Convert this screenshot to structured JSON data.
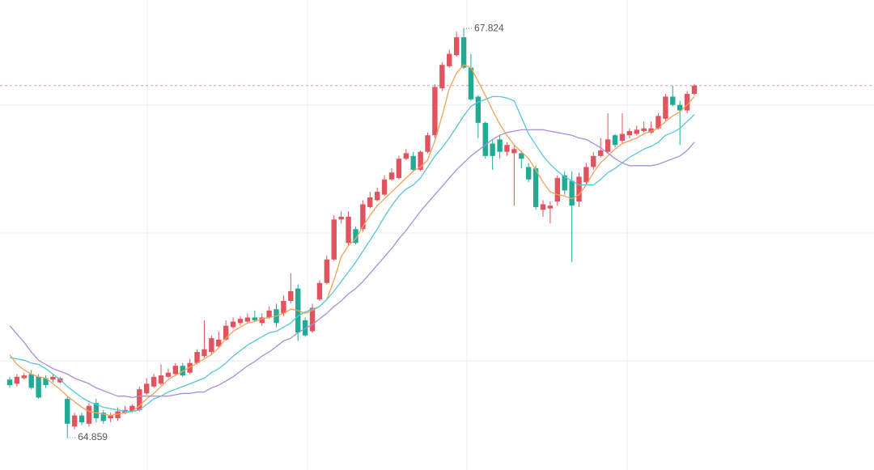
{
  "chart_data": {
    "type": "candlestick",
    "ylim": [
      64.625,
      68.03
    ],
    "up_color": "#e0535f",
    "down_color": "#22ab94",
    "open": [
      65.28,
      65.25,
      65.29,
      65.32,
      65.3,
      65.29,
      65.28,
      65.26,
      65.14,
      64.94,
      65.02,
      64.96,
      65.11,
      65.04,
      65.0,
      65.0,
      65.04,
      65.05,
      65.06,
      65.18,
      65.23,
      65.25,
      65.3,
      65.32,
      65.38,
      65.33,
      65.4,
      65.45,
      65.48,
      65.52,
      65.57,
      65.66,
      65.69,
      65.7,
      65.73,
      65.69,
      65.73,
      65.79,
      65.76,
      65.85,
      65.94,
      65.71,
      65.63,
      65.86,
      65.98,
      66.15,
      66.44,
      66.27,
      66.37,
      66.37,
      66.53,
      66.58,
      66.62,
      66.73,
      66.74,
      66.88,
      66.9,
      66.8,
      66.93,
      67.05,
      67.39,
      67.55,
      67.63,
      67.76,
      67.54,
      67.33,
      67.14,
      66.99,
      67.02,
      66.93,
      66.92,
      66.92,
      66.82,
      66.81,
      66.51,
      66.52,
      66.57,
      66.76,
      66.72,
      66.57,
      66.71,
      66.82,
      66.9,
      66.93,
      67.05,
      67.01,
      67.05,
      67.06,
      67.08,
      67.07,
      67.1,
      67.17,
      67.33,
      67.27,
      67.23,
      67.35
    ],
    "close": [
      65.24,
      65.3,
      65.31,
      65.22,
      65.15,
      65.24,
      65.3,
      65.29,
      64.96,
      65.02,
      64.97,
      65.09,
      65.0,
      64.98,
      65.02,
      65.05,
      65.06,
      65.09,
      65.21,
      65.25,
      65.3,
      65.31,
      65.33,
      65.38,
      65.31,
      65.4,
      65.48,
      65.5,
      65.58,
      65.57,
      65.67,
      65.7,
      65.72,
      65.73,
      65.71,
      65.73,
      65.78,
      65.69,
      65.85,
      65.92,
      65.62,
      65.6,
      65.8,
      65.98,
      66.15,
      66.44,
      66.46,
      66.46,
      66.27,
      66.55,
      66.6,
      66.64,
      66.73,
      66.78,
      66.88,
      66.92,
      66.8,
      66.93,
      67.05,
      67.4,
      67.56,
      67.64,
      67.76,
      67.54,
      67.31,
      67.14,
      66.9,
      66.9,
      66.93,
      66.98,
      66.95,
      66.88,
      66.73,
      66.53,
      66.55,
      66.54,
      66.74,
      66.65,
      66.54,
      66.75,
      66.82,
      66.9,
      66.94,
      67.02,
      66.98,
      67.06,
      67.08,
      67.09,
      67.1,
      67.1,
      67.19,
      67.33,
      67.27,
      67.23,
      67.35,
      67.41
    ],
    "high": [
      65.3,
      65.32,
      65.33,
      65.35,
      65.32,
      65.31,
      65.32,
      65.3,
      65.16,
      65.04,
      65.04,
      65.11,
      65.14,
      65.06,
      65.04,
      65.08,
      65.09,
      65.1,
      65.23,
      65.29,
      65.32,
      65.39,
      65.36,
      65.4,
      65.4,
      65.43,
      65.5,
      65.71,
      65.6,
      65.63,
      65.71,
      65.73,
      65.74,
      65.76,
      65.78,
      65.76,
      65.81,
      65.83,
      65.89,
      66.05,
      65.97,
      65.73,
      65.83,
      66.0,
      66.18,
      66.47,
      66.5,
      66.5,
      66.39,
      66.58,
      66.64,
      66.67,
      66.76,
      66.81,
      66.9,
      66.95,
      66.93,
      66.94,
      67.07,
      67.42,
      67.58,
      67.67,
      67.8,
      67.824,
      67.64,
      67.34,
      67.15,
      67.02,
      67.05,
      67.0,
      66.98,
      66.94,
      66.85,
      66.83,
      66.58,
      66.57,
      66.76,
      66.79,
      66.79,
      66.78,
      66.85,
      66.93,
      67.03,
      67.21,
      67.06,
      67.21,
      67.1,
      67.12,
      67.15,
      67.15,
      67.21,
      67.35,
      67.41,
      67.3,
      67.37,
      67.42
    ],
    "low": [
      65.22,
      65.23,
      65.28,
      65.21,
      65.14,
      65.22,
      65.26,
      65.25,
      64.859,
      64.92,
      64.95,
      64.94,
      64.97,
      64.96,
      64.97,
      64.98,
      65.03,
      65.04,
      65.05,
      65.17,
      65.22,
      65.24,
      65.29,
      65.31,
      65.3,
      65.32,
      65.39,
      65.44,
      65.46,
      65.51,
      65.56,
      65.65,
      65.67,
      65.69,
      65.7,
      65.67,
      65.72,
      65.66,
      65.74,
      65.83,
      65.56,
      65.59,
      65.62,
      65.85,
      65.97,
      66.14,
      66.41,
      66.25,
      66.26,
      66.35,
      66.52,
      66.57,
      66.61,
      66.72,
      66.73,
      66.87,
      66.79,
      66.79,
      66.92,
      67.03,
      67.37,
      67.54,
      67.62,
      67.53,
      67.3,
      67.03,
      66.88,
      66.8,
      66.88,
      66.9,
      66.54,
      66.81,
      66.71,
      66.51,
      66.46,
      66.41,
      66.54,
      66.62,
      66.13,
      66.53,
      66.69,
      66.8,
      66.89,
      66.92,
      66.96,
      66.99,
      67.03,
      67.05,
      67.07,
      67.06,
      67.09,
      67.15,
      67.26,
      66.98,
      67.21,
      67.34
    ],
    "lines": [
      {
        "color": "#f3a15a",
        "values": [
          65.46,
          65.39,
          65.35,
          65.32,
          65.3,
          65.29,
          65.25,
          65.21,
          65.16,
          65.12,
          65.08,
          65.05,
          65.04,
          65.03,
          65.02,
          65.03,
          65.04,
          65.05,
          65.09,
          65.14,
          65.18,
          65.23,
          65.28,
          65.31,
          65.34,
          65.37,
          65.4,
          65.43,
          65.46,
          65.51,
          65.58,
          65.63,
          65.66,
          65.69,
          65.7,
          65.72,
          65.73,
          65.74,
          65.76,
          65.79,
          65.78,
          65.76,
          65.78,
          65.81,
          65.86,
          66.0,
          66.17,
          66.25,
          66.3,
          66.39,
          66.47,
          66.54,
          66.59,
          66.64,
          66.69,
          66.74,
          66.79,
          66.82,
          66.87,
          67.01,
          67.19,
          67.39,
          67.5,
          67.56,
          67.54,
          67.44,
          67.34,
          67.23,
          67.13,
          67.05,
          66.98,
          66.93,
          66.88,
          66.8,
          66.71,
          66.64,
          66.62,
          66.61,
          66.59,
          66.62,
          66.69,
          66.78,
          66.85,
          66.9,
          66.95,
          66.99,
          67.01,
          67.03,
          67.06,
          67.08,
          67.1,
          67.15,
          67.19,
          67.22,
          67.27,
          67.33
        ]
      },
      {
        "color": "#58c6d6",
        "values": [
          65.44,
          65.43,
          65.42,
          65.4,
          65.39,
          65.36,
          65.32,
          65.28,
          65.23,
          65.19,
          65.15,
          65.12,
          65.1,
          65.08,
          65.07,
          65.06,
          65.05,
          65.05,
          65.06,
          65.1,
          65.14,
          65.16,
          65.19,
          65.21,
          65.23,
          65.25,
          65.27,
          65.29,
          65.33,
          65.36,
          65.4,
          65.45,
          65.49,
          65.53,
          65.56,
          65.59,
          65.62,
          65.63,
          65.66,
          65.69,
          65.74,
          65.77,
          65.79,
          65.81,
          65.86,
          65.92,
          65.99,
          66.06,
          66.13,
          66.21,
          66.29,
          66.37,
          66.46,
          66.54,
          66.61,
          66.66,
          66.69,
          66.74,
          66.82,
          66.9,
          66.96,
          67.03,
          67.11,
          67.19,
          67.26,
          67.29,
          67.31,
          67.33,
          67.33,
          67.32,
          67.3,
          67.18,
          67.06,
          66.98,
          66.9,
          66.84,
          66.79,
          66.75,
          66.72,
          66.69,
          66.69,
          66.69,
          66.73,
          66.78,
          66.81,
          66.85,
          66.89,
          66.92,
          66.95,
          66.97,
          67.0,
          67.05,
          67.07,
          67.1,
          67.15,
          67.2
        ]
      },
      {
        "color": "#a690d9",
        "values": [
          65.67,
          65.61,
          65.55,
          65.48,
          65.42,
          65.39,
          65.36,
          65.34,
          65.32,
          65.29,
          65.27,
          65.25,
          65.22,
          65.2,
          65.18,
          65.16,
          65.16,
          65.15,
          65.16,
          65.16,
          65.16,
          65.16,
          65.16,
          65.17,
          65.18,
          65.18,
          65.19,
          65.19,
          65.22,
          65.24,
          65.27,
          65.3,
          65.34,
          65.38,
          65.41,
          65.45,
          65.48,
          65.52,
          65.56,
          65.58,
          65.62,
          65.65,
          65.68,
          65.72,
          65.76,
          65.81,
          65.85,
          65.9,
          65.94,
          65.99,
          66.05,
          66.11,
          66.17,
          66.23,
          66.3,
          66.36,
          66.43,
          66.5,
          66.56,
          66.62,
          66.68,
          66.74,
          66.8,
          66.85,
          66.9,
          66.94,
          66.98,
          67.02,
          67.05,
          67.07,
          67.08,
          67.09,
          67.09,
          67.09,
          67.09,
          67.08,
          67.07,
          67.06,
          67.05,
          67.03,
          67.02,
          66.99,
          66.96,
          66.92,
          66.88,
          66.85,
          66.83,
          66.83,
          66.83,
          66.83,
          66.84,
          66.86,
          66.88,
          66.9,
          66.94,
          67.0
        ]
      }
    ]
  }
}
